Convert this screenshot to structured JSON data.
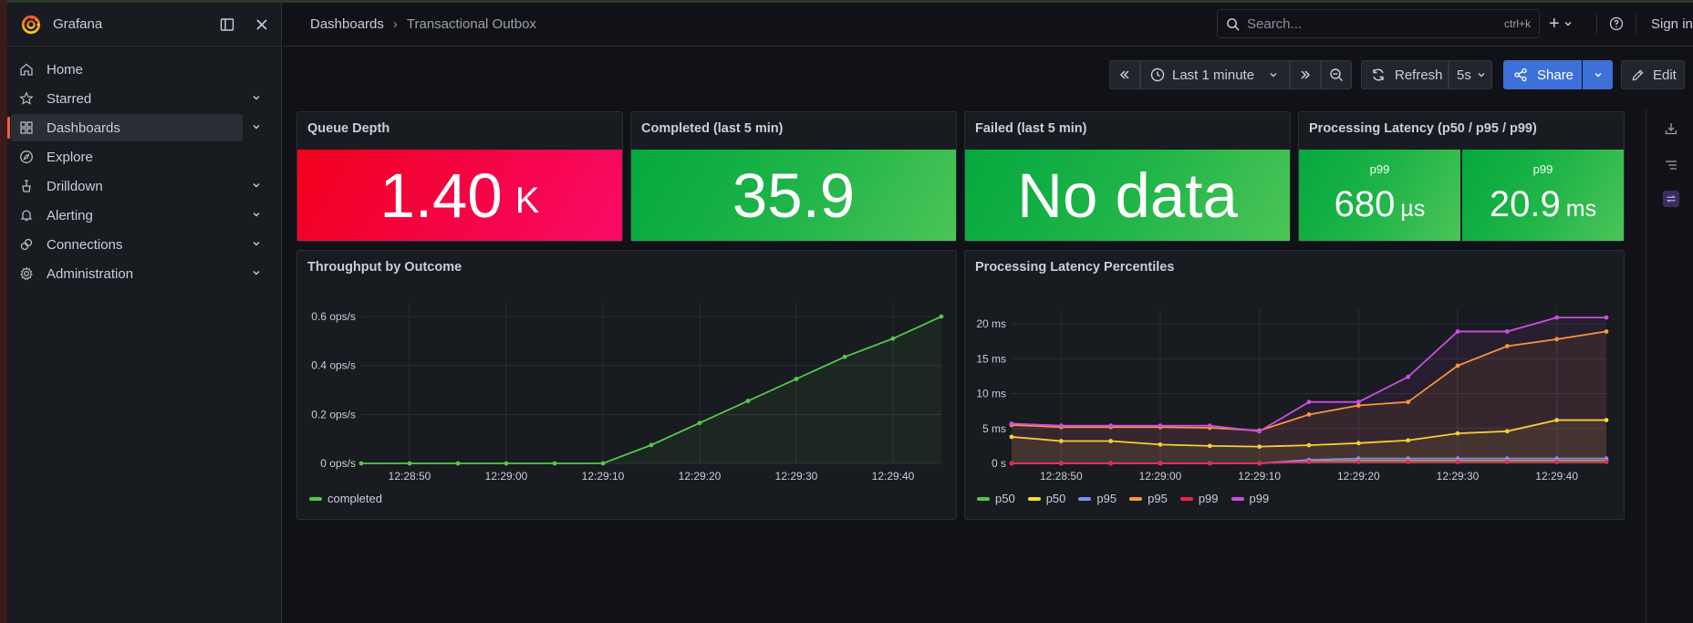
{
  "app": {
    "name": "Grafana"
  },
  "sidebar": {
    "items": [
      {
        "label": "Home",
        "icon": "home-icon",
        "chevron": false,
        "active": false
      },
      {
        "label": "Starred",
        "icon": "star-icon",
        "chevron": true,
        "active": false
      },
      {
        "label": "Dashboards",
        "icon": "dashboards-icon",
        "chevron": true,
        "active": true
      },
      {
        "label": "Explore",
        "icon": "compass-icon",
        "chevron": false,
        "active": false
      },
      {
        "label": "Drilldown",
        "icon": "drilldown-icon",
        "chevron": true,
        "active": false
      },
      {
        "label": "Alerting",
        "icon": "bell-icon",
        "chevron": true,
        "active": false
      },
      {
        "label": "Connections",
        "icon": "connections-icon",
        "chevron": true,
        "active": false
      },
      {
        "label": "Administration",
        "icon": "gear-icon",
        "chevron": true,
        "active": false
      }
    ]
  },
  "breadcrumb": {
    "parent": "Dashboards",
    "separator": "›",
    "current": "Transactional Outbox"
  },
  "search": {
    "placeholder": "Search...",
    "shortcut": "ctrl+k"
  },
  "topbar": {
    "sign_in": "Sign in",
    "new_symbol": "+"
  },
  "toolbar": {
    "time_range": "Last 1 minute",
    "refresh": "Refresh",
    "refresh_interval": "5s",
    "share": "Share",
    "edit": "Edit"
  },
  "panels": {
    "queue_depth": {
      "title": "Queue Depth",
      "value": "1.40",
      "unit": "K",
      "color": "#f2001c"
    },
    "completed": {
      "title": "Completed (last 5 min)",
      "value": "35.9",
      "color": "#05a83f"
    },
    "failed": {
      "title": "Failed (last 5 min)",
      "value": "No data",
      "color": "#05a83f"
    },
    "latency_stat": {
      "title": "Processing Latency (p50 / p95 / p99)",
      "cells": [
        {
          "label": "p99",
          "value": "680",
          "unit": "µs"
        },
        {
          "label": "p99",
          "value": "20.9",
          "unit": "ms"
        }
      ]
    },
    "throughput": {
      "title": "Throughput by Outcome"
    },
    "latency_ts": {
      "title": "Processing Latency Percentiles"
    }
  },
  "chart_data": [
    {
      "type": "area",
      "title": "Throughput by Outcome",
      "x": [
        "12:28:45",
        "12:28:50",
        "12:28:55",
        "12:29:00",
        "12:29:05",
        "12:29:10",
        "12:29:15",
        "12:29:20",
        "12:29:25",
        "12:29:30",
        "12:29:35",
        "12:29:40",
        "12:29:45"
      ],
      "x_ticks": [
        "12:28:50",
        "12:29:00",
        "12:29:10",
        "12:29:20",
        "12:29:30",
        "12:29:40"
      ],
      "y_ticks": [
        "0 ops/s",
        "0.2 ops/s",
        "0.4 ops/s",
        "0.6 ops/s"
      ],
      "ylim": [
        0,
        0.6
      ],
      "grid": true,
      "legend_position": "bottom-left",
      "series": [
        {
          "name": "completed",
          "color": "#56c451",
          "values": [
            0,
            0,
            0,
            0,
            0,
            0,
            0.075,
            0.165,
            0.255,
            0.345,
            0.435,
            0.51,
            0.6
          ]
        }
      ]
    },
    {
      "type": "line",
      "title": "Processing Latency Percentiles",
      "x": [
        "12:28:45",
        "12:28:50",
        "12:28:55",
        "12:29:00",
        "12:29:05",
        "12:29:10",
        "12:29:15",
        "12:29:20",
        "12:29:25",
        "12:29:30",
        "12:29:35",
        "12:29:40",
        "12:29:45"
      ],
      "x_ticks": [
        "12:28:50",
        "12:29:00",
        "12:29:10",
        "12:29:20",
        "12:29:30",
        "12:29:40"
      ],
      "y_ticks": [
        "0 s",
        "5 ms",
        "10 ms",
        "15 ms",
        "20 ms"
      ],
      "ylim": [
        0,
        20
      ],
      "grid": true,
      "legend_position": "bottom-left",
      "series": [
        {
          "name": "p50",
          "color": "#56c451",
          "values": [
            0,
            0,
            0,
            0,
            0,
            0,
            0.3,
            0.4,
            0.4,
            0.4,
            0.4,
            0.4,
            0.4
          ]
        },
        {
          "name": "p50",
          "color": "#fade2a",
          "values": [
            3.8,
            3.2,
            3.2,
            2.7,
            2.5,
            2.4,
            2.6,
            2.9,
            3.3,
            4.3,
            4.6,
            6.2,
            6.2
          ]
        },
        {
          "name": "p95",
          "color": "#7e8ff0",
          "values": [
            0,
            0,
            0,
            0,
            0,
            0,
            0.5,
            0.7,
            0.7,
            0.7,
            0.7,
            0.7,
            0.7
          ]
        },
        {
          "name": "p95",
          "color": "#ff9830",
          "values": [
            5.5,
            5.2,
            5.2,
            5.2,
            5.1,
            4.7,
            7.0,
            8.3,
            8.8,
            14.0,
            16.8,
            17.8,
            18.9
          ]
        },
        {
          "name": "p99",
          "color": "#f2214d",
          "values": [
            0,
            0,
            0,
            0,
            0,
            0,
            0.2,
            0.2,
            0.2,
            0.2,
            0.2,
            0.2,
            0.2
          ]
        },
        {
          "name": "p99",
          "color": "#c94fe3",
          "values": [
            5.7,
            5.4,
            5.4,
            5.4,
            5.4,
            4.6,
            8.8,
            8.8,
            12.4,
            18.9,
            18.9,
            20.9,
            20.9
          ]
        }
      ]
    }
  ]
}
